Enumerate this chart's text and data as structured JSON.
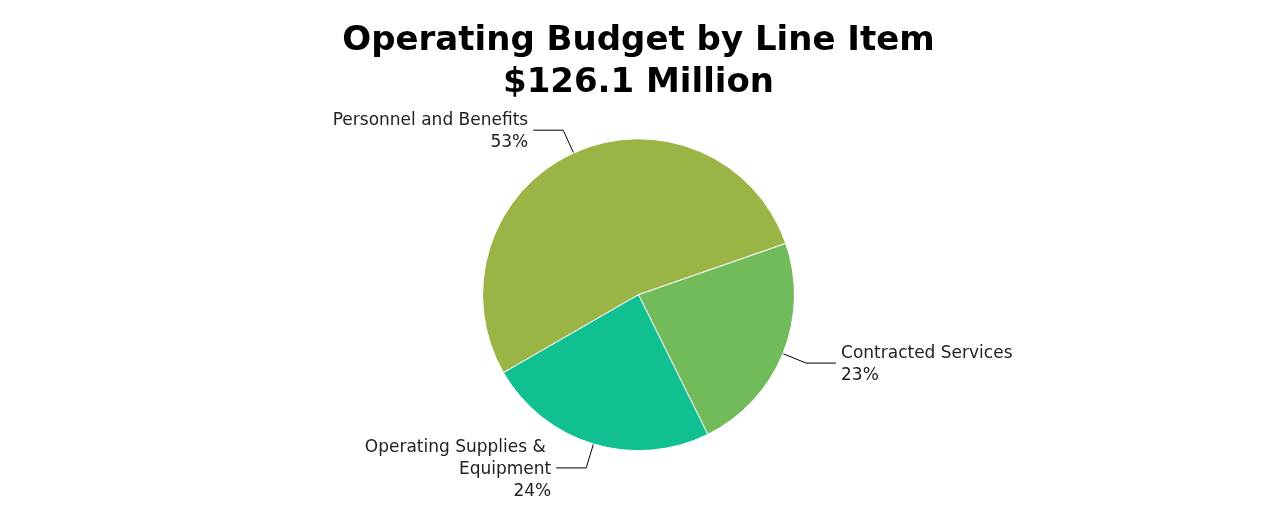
{
  "chart_data": {
    "type": "pie",
    "title": "Operating Budget by Line Item",
    "subtitle": "$126.1 Million",
    "categories": [
      "Personnel and Benefits",
      "Contracted Services",
      "Operating Supplies & Equipment"
    ],
    "values": [
      53,
      23,
      24
    ],
    "value_labels": [
      "53%",
      "23%",
      "24%"
    ],
    "colors": [
      "#9bb446",
      "#72bb5a",
      "#10c090"
    ]
  }
}
